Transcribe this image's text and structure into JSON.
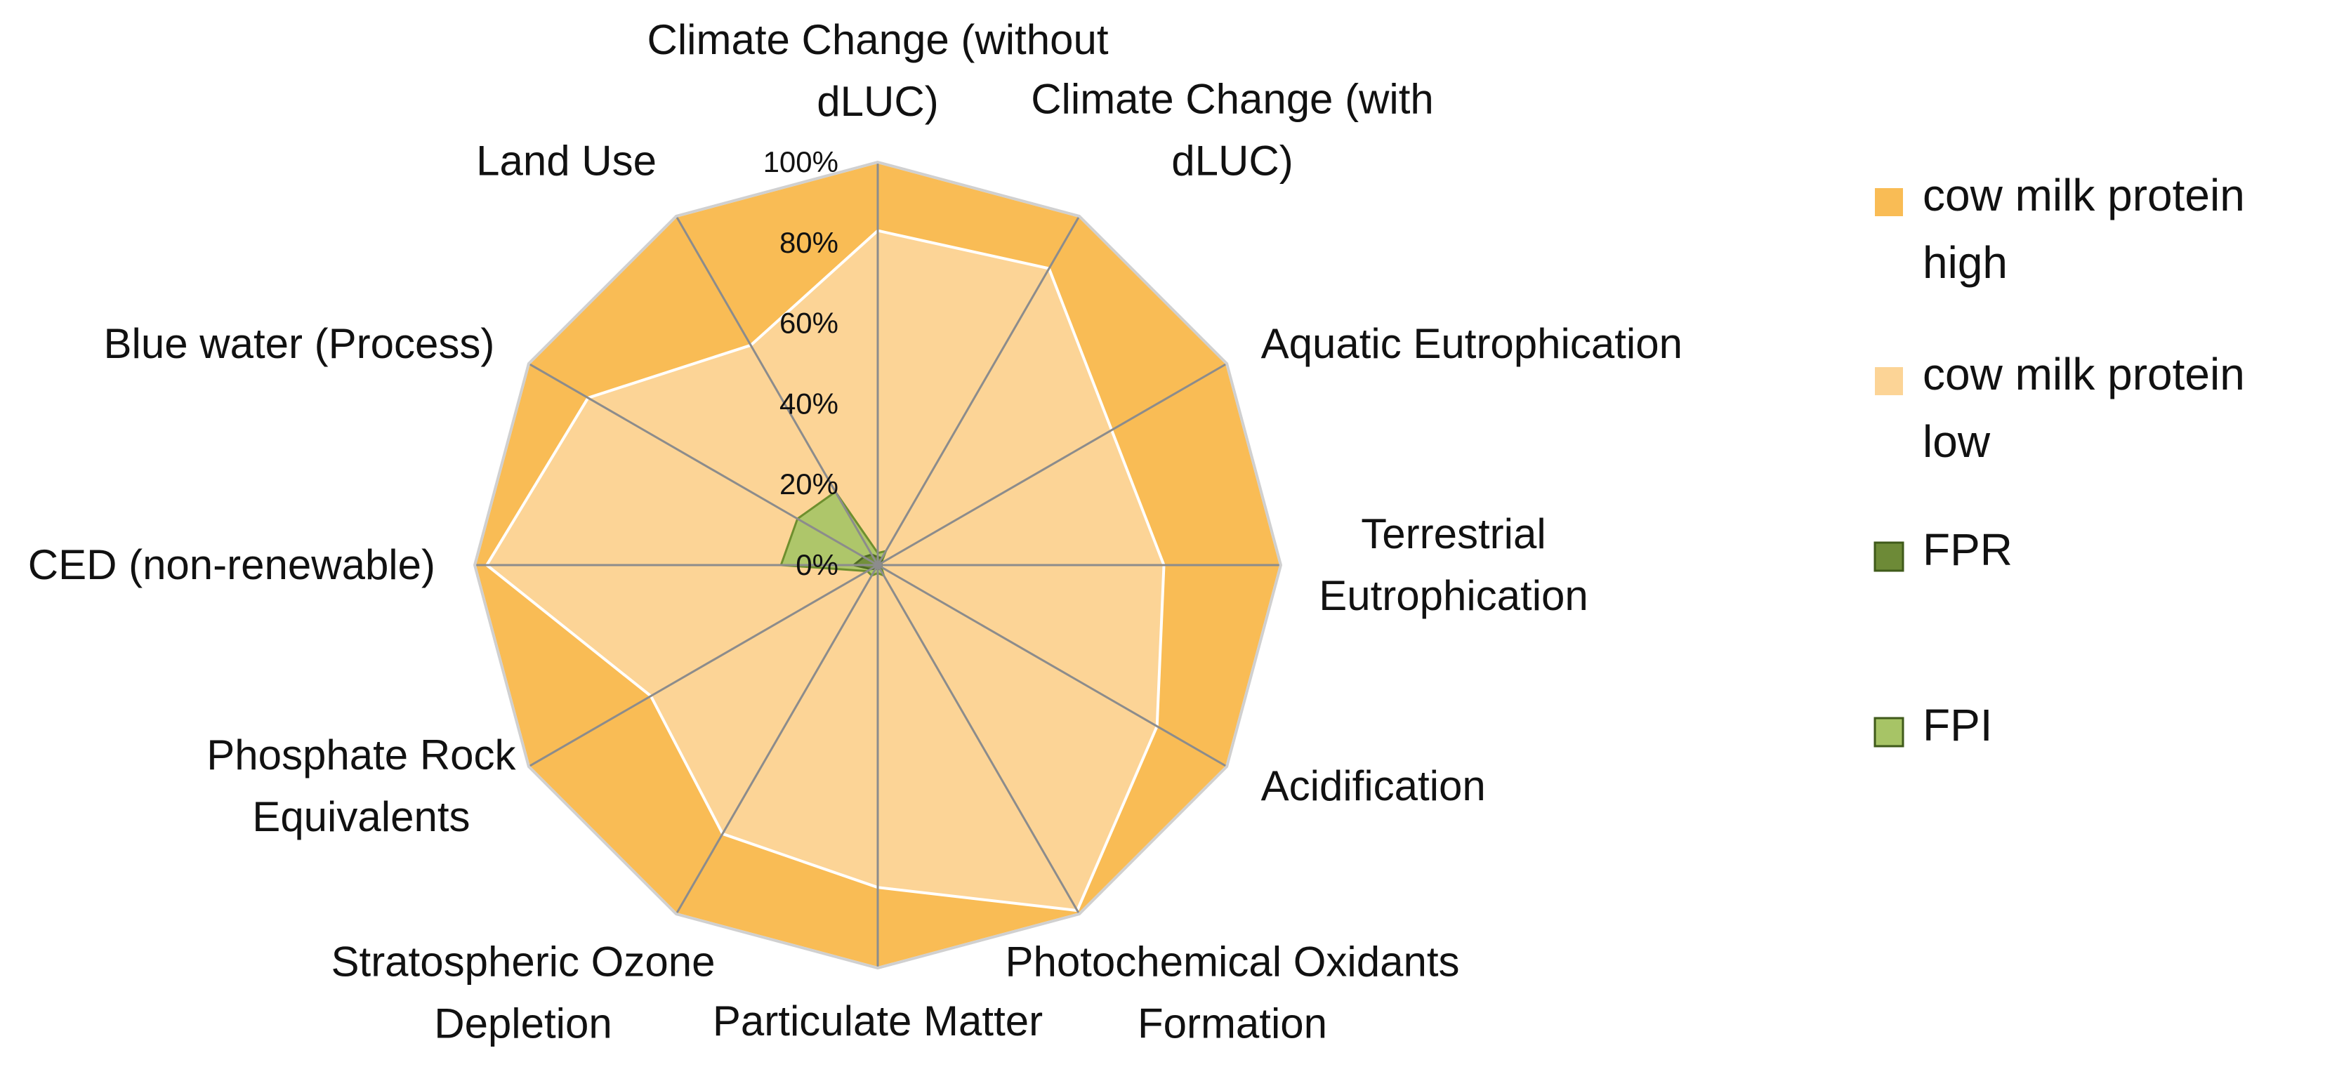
{
  "chart_data": {
    "type": "radar",
    "categories": [
      [
        "Climate Change (without",
        "dLUC)"
      ],
      [
        "Climate Change (with",
        "dLUC)"
      ],
      [
        "Aquatic Eutrophication"
      ],
      [
        "Terrestrial",
        "Eutrophication"
      ],
      [
        "Acidification"
      ],
      [
        "Photochemical Oxidants",
        "Formation"
      ],
      [
        "Particulate Matter"
      ],
      [
        "Stratospheric Ozone",
        "Depletion"
      ],
      [
        "Phosphate Rock",
        "Equivalents"
      ],
      [
        "CED (non-renewable)"
      ],
      [
        "Blue water (Process)"
      ],
      [
        "Land Use"
      ]
    ],
    "radial_ticks": [
      "0%",
      "20%",
      "40%",
      "60%",
      "80%",
      "100%"
    ],
    "rlim": [
      0,
      100
    ],
    "grid": "spokes-only",
    "legend_position": "right",
    "series": [
      {
        "name": [
          "cow milk protein",
          "high"
        ],
        "color": "#F9BC55",
        "values": [
          100,
          100,
          100,
          100,
          100,
          100,
          100,
          100,
          100,
          100,
          100,
          100
        ]
      },
      {
        "name": [
          "cow milk protein",
          "low"
        ],
        "color": "#FCD496",
        "values": [
          83,
          85,
          67,
          71,
          80,
          99,
          80,
          77,
          65,
          97,
          83,
          63
        ]
      },
      {
        "name": [
          "FPI"
        ],
        "color": "#A7C466",
        "values": [
          3,
          4,
          1,
          1,
          1,
          3,
          2,
          3,
          3,
          24,
          23,
          21
        ]
      },
      {
        "name": [
          "FPR"
        ],
        "color": "#6D8A37",
        "values": [
          2,
          2,
          1,
          1,
          1,
          1,
          1,
          1,
          2,
          6,
          4,
          3
        ]
      }
    ],
    "legend_order": [
      0,
      1,
      3,
      2
    ]
  }
}
